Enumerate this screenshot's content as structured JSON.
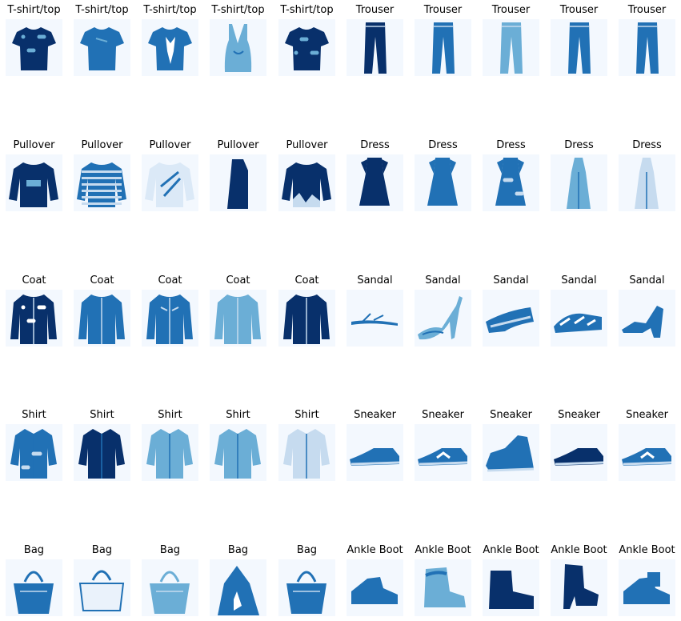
{
  "colors": {
    "thumb_background": "#f3f8fe",
    "dark_blue": "#08306b",
    "mid_blue": "#2171b5",
    "light_blue": "#6baed6",
    "pale_blue": "#c6dbef"
  },
  "grid": {
    "rows": [
      {
        "items": [
          {
            "label": "T-shirt/top",
            "icon": "tshirt-icon",
            "variant": 0
          },
          {
            "label": "T-shirt/top",
            "icon": "tshirt-icon",
            "variant": 1
          },
          {
            "label": "T-shirt/top",
            "icon": "tshirt-icon",
            "variant": 2
          },
          {
            "label": "T-shirt/top",
            "icon": "tank-top-icon",
            "variant": 3
          },
          {
            "label": "T-shirt/top",
            "icon": "tshirt-icon",
            "variant": 4
          },
          {
            "label": "Trouser",
            "icon": "trouser-icon",
            "variant": 0
          },
          {
            "label": "Trouser",
            "icon": "trouser-icon",
            "variant": 1
          },
          {
            "label": "Trouser",
            "icon": "trouser-icon",
            "variant": 2
          },
          {
            "label": "Trouser",
            "icon": "trouser-icon",
            "variant": 3
          },
          {
            "label": "Trouser",
            "icon": "trouser-icon",
            "variant": 4
          }
        ]
      },
      {
        "items": [
          {
            "label": "Pullover",
            "icon": "pullover-icon",
            "variant": 0
          },
          {
            "label": "Pullover",
            "icon": "pullover-icon",
            "variant": 1
          },
          {
            "label": "Pullover",
            "icon": "pullover-icon",
            "variant": 2
          },
          {
            "label": "Pullover",
            "icon": "pullover-icon",
            "variant": 3
          },
          {
            "label": "Pullover",
            "icon": "pullover-icon",
            "variant": 4
          },
          {
            "label": "Dress",
            "icon": "dress-icon",
            "variant": 0
          },
          {
            "label": "Dress",
            "icon": "dress-icon",
            "variant": 1
          },
          {
            "label": "Dress",
            "icon": "dress-icon",
            "variant": 2
          },
          {
            "label": "Dress",
            "icon": "dress-icon",
            "variant": 3
          },
          {
            "label": "Dress",
            "icon": "dress-icon",
            "variant": 4
          }
        ]
      },
      {
        "items": [
          {
            "label": "Coat",
            "icon": "coat-icon",
            "variant": 0
          },
          {
            "label": "Coat",
            "icon": "coat-icon",
            "variant": 1
          },
          {
            "label": "Coat",
            "icon": "coat-icon",
            "variant": 2
          },
          {
            "label": "Coat",
            "icon": "coat-icon",
            "variant": 3
          },
          {
            "label": "Coat",
            "icon": "coat-icon",
            "variant": 4
          },
          {
            "label": "Sandal",
            "icon": "sandal-icon",
            "variant": 0
          },
          {
            "label": "Sandal",
            "icon": "sandal-icon",
            "variant": 1
          },
          {
            "label": "Sandal",
            "icon": "sandal-icon",
            "variant": 2
          },
          {
            "label": "Sandal",
            "icon": "sandal-icon",
            "variant": 3
          },
          {
            "label": "Sandal",
            "icon": "sandal-icon",
            "variant": 4
          }
        ]
      },
      {
        "items": [
          {
            "label": "Shirt",
            "icon": "shirt-icon",
            "variant": 0
          },
          {
            "label": "Shirt",
            "icon": "shirt-icon",
            "variant": 1
          },
          {
            "label": "Shirt",
            "icon": "shirt-icon",
            "variant": 2
          },
          {
            "label": "Shirt",
            "icon": "shirt-icon",
            "variant": 3
          },
          {
            "label": "Shirt",
            "icon": "shirt-icon",
            "variant": 4
          },
          {
            "label": "Sneaker",
            "icon": "sneaker-icon",
            "variant": 0
          },
          {
            "label": "Sneaker",
            "icon": "sneaker-icon",
            "variant": 1
          },
          {
            "label": "Sneaker",
            "icon": "sneaker-icon",
            "variant": 2
          },
          {
            "label": "Sneaker",
            "icon": "sneaker-icon",
            "variant": 3
          },
          {
            "label": "Sneaker",
            "icon": "sneaker-icon",
            "variant": 4
          }
        ]
      },
      {
        "items": [
          {
            "label": "Bag",
            "icon": "bag-icon",
            "variant": 0
          },
          {
            "label": "Bag",
            "icon": "bag-icon",
            "variant": 1
          },
          {
            "label": "Bag",
            "icon": "bag-icon",
            "variant": 2
          },
          {
            "label": "Bag",
            "icon": "bag-icon",
            "variant": 3
          },
          {
            "label": "Bag",
            "icon": "bag-icon",
            "variant": 4
          },
          {
            "label": "Ankle Boot",
            "icon": "ankle-boot-icon",
            "variant": 0
          },
          {
            "label": "Ankle Boot",
            "icon": "ankle-boot-icon",
            "variant": 1
          },
          {
            "label": "Ankle Boot",
            "icon": "ankle-boot-icon",
            "variant": 2
          },
          {
            "label": "Ankle Boot",
            "icon": "ankle-boot-icon",
            "variant": 3
          },
          {
            "label": "Ankle Boot",
            "icon": "ankle-boot-icon",
            "variant": 4
          }
        ]
      }
    ]
  }
}
